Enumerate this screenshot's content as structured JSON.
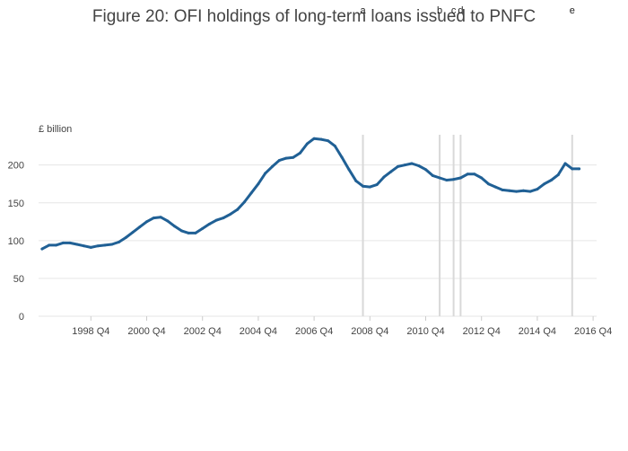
{
  "chart_data": {
    "type": "line",
    "title": "Figure 20: OFI holdings of long-term loans issued to PNFC",
    "ylabel": "£ billion",
    "xlabel": "",
    "ylim": [
      0,
      240
    ],
    "yticks": [
      0,
      50,
      100,
      150,
      200
    ],
    "grid": true,
    "xticks": [
      "1998 Q4",
      "2000 Q4",
      "2002 Q4",
      "2004 Q4",
      "2006 Q4",
      "2008 Q4",
      "2010 Q4",
      "2012 Q4",
      "2014 Q4",
      "2016 Q4"
    ],
    "line_color": "#206095",
    "series": [
      {
        "x": [
          "1997 Q1",
          "1997 Q2",
          "1997 Q3",
          "1997 Q4",
          "1998 Q1",
          "1998 Q2",
          "1998 Q3",
          "1998 Q4",
          "1999 Q1",
          "1999 Q2",
          "1999 Q3",
          "1999 Q4",
          "2000 Q1",
          "2000 Q2",
          "2000 Q3",
          "2000 Q4",
          "2001 Q1",
          "2001 Q2",
          "2001 Q3",
          "2001 Q4",
          "2002 Q1",
          "2002 Q2",
          "2002 Q3",
          "2002 Q4",
          "2003 Q1",
          "2003 Q2",
          "2003 Q3",
          "2003 Q4",
          "2004 Q1",
          "2004 Q2",
          "2004 Q3",
          "2004 Q4",
          "2005 Q1",
          "2005 Q2",
          "2005 Q3",
          "2005 Q4",
          "2006 Q1",
          "2006 Q2",
          "2006 Q3",
          "2006 Q4",
          "2007 Q1",
          "2007 Q2",
          "2007 Q3",
          "2007 Q4",
          "2008 Q1",
          "2008 Q2",
          "2008 Q3",
          "2008 Q4",
          "2009 Q1",
          "2009 Q2",
          "2009 Q3",
          "2009 Q4",
          "2010 Q1",
          "2010 Q2",
          "2010 Q3",
          "2010 Q4",
          "2011 Q1",
          "2011 Q2",
          "2011 Q3",
          "2011 Q4",
          "2012 Q1",
          "2012 Q2",
          "2012 Q3",
          "2012 Q4",
          "2013 Q1",
          "2013 Q2",
          "2013 Q3",
          "2013 Q4",
          "2014 Q1",
          "2014 Q2",
          "2014 Q3",
          "2014 Q4",
          "2015 Q1",
          "2015 Q2",
          "2015 Q3",
          "2015 Q4",
          "2016 Q1",
          "2016 Q2"
        ],
        "values": [
          89,
          94,
          94,
          97,
          97,
          95,
          93,
          91,
          93,
          94,
          95,
          98,
          104,
          111,
          118,
          125,
          130,
          131,
          126,
          119,
          113,
          110,
          110,
          116,
          122,
          127,
          130,
          135,
          141,
          151,
          163,
          175,
          189,
          198,
          206,
          209,
          210,
          216,
          228,
          235,
          234,
          232,
          225,
          210,
          194,
          179,
          172,
          171,
          174,
          184,
          191,
          198,
          200,
          202,
          199,
          194,
          186,
          183,
          180,
          181,
          183,
          188,
          188,
          183,
          175,
          171,
          167,
          166,
          165,
          166,
          165,
          168,
          175,
          180,
          187,
          202,
          195,
          195
        ]
      }
    ],
    "annotations": [
      {
        "label": "a",
        "x": "2008 Q3"
      },
      {
        "label": "b",
        "x": "2011 Q2"
      },
      {
        "label": "c",
        "x": "2011 Q4"
      },
      {
        "label": "d",
        "x": "2012 Q1"
      },
      {
        "label": "e",
        "x": "2016 Q1"
      }
    ]
  }
}
